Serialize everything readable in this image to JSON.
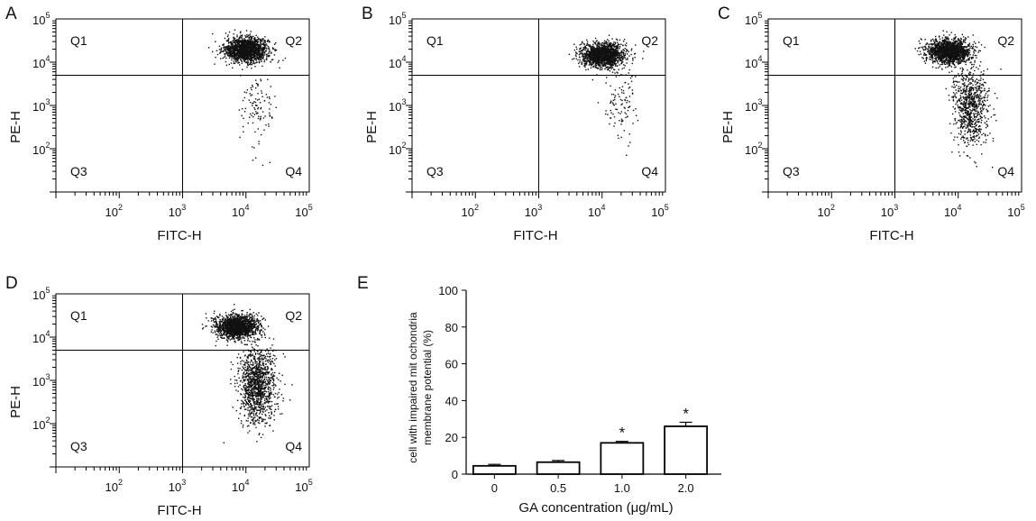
{
  "figure": {
    "panels": [
      {
        "letter": "A",
        "xlabel": "FITC-H",
        "ylabel": "PE-H",
        "quadrants": [
          "Q1",
          "Q2",
          "Q3",
          "Q4"
        ]
      },
      {
        "letter": "B",
        "xlabel": "FITC-H",
        "ylabel": "PE-H",
        "quadrants": [
          "Q1",
          "Q2",
          "Q3",
          "Q4"
        ]
      },
      {
        "letter": "C",
        "xlabel": "FITC-H",
        "ylabel": "PE-H",
        "quadrants": [
          "Q1",
          "Q2",
          "Q3",
          "Q4"
        ]
      },
      {
        "letter": "D",
        "xlabel": "FITC-H",
        "ylabel": "PE-H",
        "quadrants": [
          "Q1",
          "Q2",
          "Q3",
          "Q4"
        ]
      },
      {
        "letter": "E"
      }
    ]
  },
  "chart_data": [
    {
      "type": "scatter",
      "panel": "A",
      "xlabel": "FITC-H",
      "ylabel": "PE-H",
      "x_scale": "log",
      "y_scale": "log",
      "xlim": [
        10,
        100000
      ],
      "ylim": [
        10,
        100000
      ],
      "gate": {
        "x": 1000,
        "y": 5000
      },
      "x_ticks": [
        "10^2",
        "10^3",
        "10^4",
        "10^5"
      ],
      "y_ticks": [
        "10^2",
        "10^3",
        "10^4",
        "10^5"
      ],
      "quadrants": [
        "Q1",
        "Q2",
        "Q3",
        "Q4"
      ],
      "clusters": [
        {
          "x_center": 10000,
          "y_center": 20000,
          "density": "high"
        },
        {
          "x_center": 15000,
          "y_center": 1000,
          "density": "sparse"
        }
      ]
    },
    {
      "type": "scatter",
      "panel": "B",
      "xlabel": "FITC-H",
      "ylabel": "PE-H",
      "x_scale": "log",
      "y_scale": "log",
      "xlim": [
        10,
        100000
      ],
      "ylim": [
        10,
        100000
      ],
      "gate": {
        "x": 1000,
        "y": 5000
      },
      "x_ticks": [
        "10^2",
        "10^3",
        "10^4",
        "10^5"
      ],
      "y_ticks": [
        "10^2",
        "10^3",
        "10^4",
        "10^5"
      ],
      "quadrants": [
        "Q1",
        "Q2",
        "Q3",
        "Q4"
      ],
      "clusters": [
        {
          "x_center": 10000,
          "y_center": 15000,
          "density": "high"
        },
        {
          "x_center": 20000,
          "y_center": 1200,
          "density": "sparse"
        }
      ]
    },
    {
      "type": "scatter",
      "panel": "C",
      "xlabel": "FITC-H",
      "ylabel": "PE-H",
      "x_scale": "log",
      "y_scale": "log",
      "xlim": [
        10,
        100000
      ],
      "ylim": [
        10,
        100000
      ],
      "gate": {
        "x": 1000,
        "y": 5000
      },
      "x_ticks": [
        "10^2",
        "10^3",
        "10^4",
        "10^5"
      ],
      "y_ticks": [
        "10^2",
        "10^3",
        "10^4",
        "10^5"
      ],
      "quadrants": [
        "Q1",
        "Q2",
        "Q3",
        "Q4"
      ],
      "clusters": [
        {
          "x_center": 7000,
          "y_center": 18000,
          "density": "high"
        },
        {
          "x_center": 15000,
          "y_center": 1000,
          "density": "medium"
        }
      ]
    },
    {
      "type": "scatter",
      "panel": "D",
      "xlabel": "FITC-H",
      "ylabel": "PE-H",
      "x_scale": "log",
      "y_scale": "log",
      "xlim": [
        10,
        100000
      ],
      "ylim": [
        10,
        100000
      ],
      "gate": {
        "x": 1000,
        "y": 5000
      },
      "x_ticks": [
        "10^2",
        "10^3",
        "10^4",
        "10^5"
      ],
      "y_ticks": [
        "10^2",
        "10^3",
        "10^4",
        "10^5"
      ],
      "quadrants": [
        "Q1",
        "Q2",
        "Q3",
        "Q4"
      ],
      "clusters": [
        {
          "x_center": 7000,
          "y_center": 18000,
          "density": "high"
        },
        {
          "x_center": 15000,
          "y_center": 800,
          "density": "medium-high"
        }
      ]
    },
    {
      "type": "bar",
      "panel": "E",
      "categories": [
        "0",
        "0.5",
        "1.0",
        "2.0"
      ],
      "values": [
        4.5,
        6.5,
        17,
        26
      ],
      "errors": [
        0.8,
        0.9,
        0.8,
        2.2
      ],
      "significance": [
        "",
        "",
        "*",
        "*"
      ],
      "xlabel": "GA concentration (μg/mL)",
      "ylabel_lines": [
        "cell with impaired mit ochondria",
        "membrane potential (%)"
      ],
      "ylim": [
        0,
        100
      ],
      "yticks": [
        0,
        20,
        40,
        60,
        80,
        100
      ]
    }
  ]
}
